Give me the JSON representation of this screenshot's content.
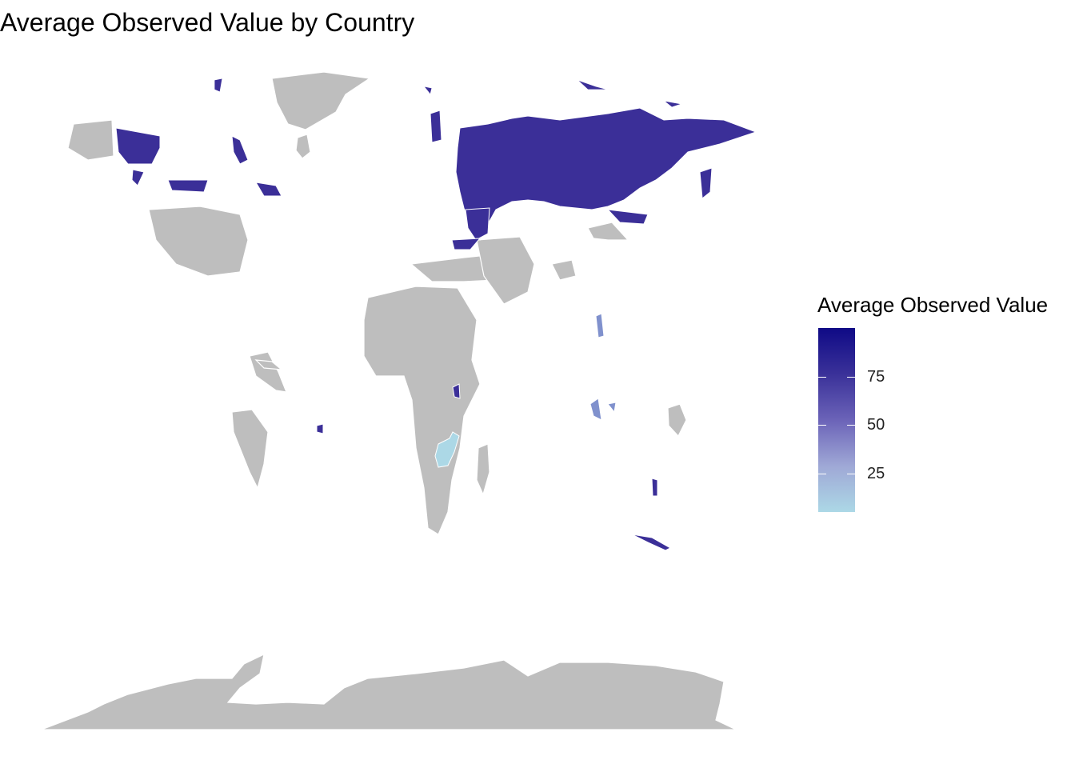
{
  "title": "Average Observed Value by Country",
  "legend": {
    "title": "Average Observed Value",
    "ticks": [
      "75",
      "50",
      "25"
    ],
    "range": [
      3,
      100
    ],
    "colors": {
      "low": "#acd8e6",
      "mid": "#6b63b8",
      "high": "#0f0a86"
    }
  },
  "map": {
    "no_data_color": "#bebebe",
    "border_color": "#ffffff",
    "regions": [
      {
        "region": "Canada / Alaska / Arctic islands",
        "value": 80
      },
      {
        "region": "Russia",
        "value": 80
      },
      {
        "region": "Kazakhstan",
        "value": 80
      },
      {
        "region": "Scandinavia",
        "value": 80
      },
      {
        "region": "Southeast Asia islands",
        "value": 35
      },
      {
        "region": "Zambia / southern Africa",
        "value": 5
      },
      {
        "region": "New Zealand",
        "value": 80
      },
      {
        "region": "Caribbean island",
        "value": 75
      },
      {
        "region": "East African lakes",
        "value": 70
      }
    ]
  }
}
